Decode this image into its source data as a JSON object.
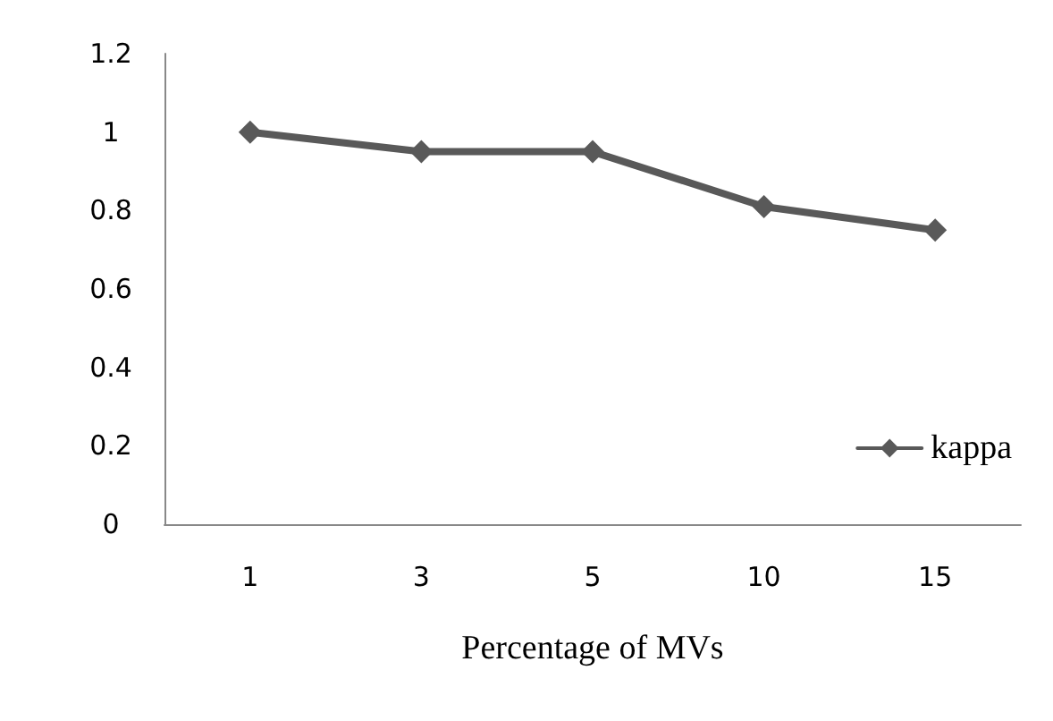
{
  "chart_data": {
    "type": "line",
    "xlabel": "Percentage of MVs",
    "categories": [
      "1",
      "3",
      "5",
      "10",
      "15"
    ],
    "series": [
      {
        "name": "kappa",
        "color": "#595959",
        "values": [
          1,
          0.95,
          0.95,
          0.81,
          0.75
        ]
      }
    ],
    "ylim": [
      0,
      1.2
    ],
    "yticks": [
      0,
      0.2,
      0.4,
      0.6,
      0.8,
      1,
      1.2
    ],
    "grid": false,
    "legend": "right",
    "marker": "diamond",
    "line_style": "solid"
  }
}
